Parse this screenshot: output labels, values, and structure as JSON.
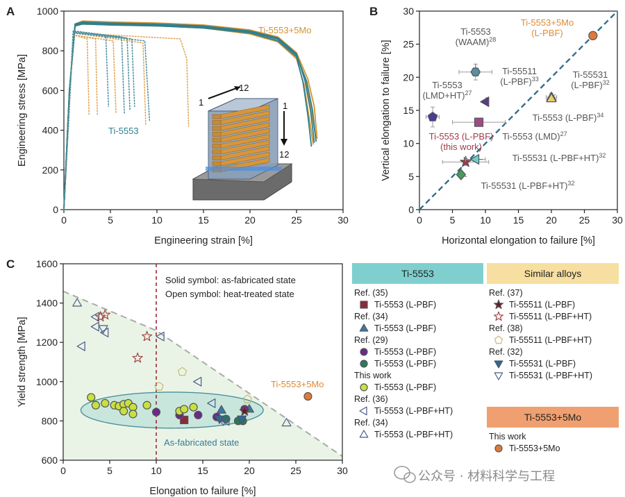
{
  "chart_data": [
    {
      "panel": "A",
      "type": "line",
      "xlabel": "Engineering strain [%]",
      "ylabel": "Engineering stress [MPa]",
      "xlim": [
        0,
        30
      ],
      "ylim": [
        0,
        1000
      ],
      "xticks": [
        0,
        5,
        10,
        15,
        20,
        25,
        30
      ],
      "yticks": [
        0,
        200,
        400,
        600,
        800,
        1000
      ],
      "annotations": [
        "Ti-5553+5Mo",
        "Ti-5553",
        "1",
        "12",
        "1",
        "12"
      ],
      "colors": {
        "ti5553_5mo": "#d4922e",
        "ti5553_5mo_dotted": "#e0a552",
        "ti5553": "#2f7f8f",
        "ti5553_dotted": "#4a8f9f"
      },
      "series": [
        {
          "group": "Ti-5553+5Mo",
          "style": "solid",
          "x": [
            0,
            0.6,
            1.2,
            2,
            5,
            10,
            15,
            20,
            23,
            25,
            26,
            26.6,
            27.1
          ],
          "y": [
            0,
            600,
            930,
            945,
            940,
            935,
            925,
            900,
            860,
            780,
            650,
            500,
            350
          ]
        },
        {
          "group": "Ti-5553+5Mo",
          "style": "solid",
          "x": [
            0,
            0.6,
            1.2,
            2,
            5,
            10,
            15,
            20,
            23,
            25,
            25.8,
            26.3,
            26.8
          ],
          "y": [
            0,
            600,
            925,
            935,
            930,
            925,
            915,
            885,
            845,
            760,
            630,
            480,
            330
          ]
        },
        {
          "group": "Ti-5553+5Mo",
          "style": "solid",
          "x": [
            0,
            0.6,
            1.2,
            2,
            5,
            10,
            15,
            20,
            23,
            25,
            26.2,
            26.9,
            27.2
          ],
          "y": [
            0,
            600,
            935,
            950,
            945,
            940,
            930,
            905,
            870,
            790,
            660,
            520,
            360
          ]
        },
        {
          "group": "Ti-5553",
          "style": "solid",
          "x": [
            0,
            0.6,
            1.2,
            2,
            5,
            10,
            15,
            20,
            23,
            25,
            25.9,
            26.5,
            26.9
          ],
          "y": [
            0,
            600,
            935,
            945,
            940,
            935,
            925,
            900,
            865,
            785,
            650,
            500,
            340
          ]
        },
        {
          "group": "Ti-5553",
          "style": "solid",
          "x": [
            0,
            0.6,
            1.2,
            2,
            5,
            10,
            15,
            20,
            23,
            25,
            25.7,
            26.2,
            26.6
          ],
          "y": [
            0,
            600,
            925,
            935,
            930,
            925,
            915,
            890,
            850,
            770,
            640,
            480,
            320
          ]
        },
        {
          "group": "Ti-5553",
          "style": "solid",
          "x": [
            0,
            0.6,
            1.2,
            2,
            5,
            10,
            15,
            20,
            23,
            25,
            26.1,
            26.7,
            27.1
          ],
          "y": [
            0,
            600,
            930,
            940,
            935,
            930,
            920,
            895,
            858,
            778,
            645,
            505,
            345
          ]
        },
        {
          "group": "Ti-5553+5Mo",
          "style": "dotted",
          "x": [
            0,
            1,
            2.5,
            2.7
          ],
          "y": [
            0,
            880,
            860,
            480
          ]
        },
        {
          "group": "Ti-5553+5Mo",
          "style": "dotted",
          "x": [
            0,
            1,
            3.4,
            3.6
          ],
          "y": [
            0,
            880,
            860,
            480
          ]
        },
        {
          "group": "Ti-5553+5Mo",
          "style": "dotted",
          "x": [
            0,
            1,
            5.3,
            5.6
          ],
          "y": [
            0,
            880,
            850,
            490
          ]
        },
        {
          "group": "Ti-5553+5Mo",
          "style": "dotted",
          "x": [
            0,
            1,
            8.5,
            8.8
          ],
          "y": [
            0,
            890,
            840,
            430
          ]
        },
        {
          "group": "Ti-5553+5Mo",
          "style": "dotted",
          "x": [
            0,
            1,
            12.5,
            13.2,
            13.4
          ],
          "y": [
            0,
            890,
            860,
            760,
            420
          ]
        },
        {
          "group": "Ti-5553",
          "style": "dotted",
          "x": [
            0,
            1,
            4.5,
            4.8
          ],
          "y": [
            0,
            900,
            880,
            520
          ]
        },
        {
          "group": "Ti-5553",
          "style": "dotted",
          "x": [
            0,
            1,
            6.2,
            6.5
          ],
          "y": [
            0,
            900,
            870,
            480
          ]
        },
        {
          "group": "Ti-5553",
          "style": "dotted",
          "x": [
            0,
            1,
            6.8,
            7.1
          ],
          "y": [
            0,
            895,
            865,
            500
          ]
        },
        {
          "group": "Ti-5553",
          "style": "dotted",
          "x": [
            0,
            1,
            7.3,
            7.6
          ],
          "y": [
            0,
            890,
            860,
            520
          ]
        },
        {
          "group": "Ti-5553",
          "style": "dotted",
          "x": [
            0,
            1,
            8.7,
            9.2
          ],
          "y": [
            0,
            890,
            850,
            450
          ]
        }
      ]
    },
    {
      "panel": "B",
      "type": "scatter",
      "xlabel": "Horizontal elongation to failure [%]",
      "ylabel": "Vertical elongation to failure [%]",
      "xlim": [
        0,
        30
      ],
      "ylim": [
        0,
        30
      ],
      "xticks": [
        0,
        5,
        10,
        15,
        20,
        25,
        30
      ],
      "yticks": [
        0,
        5,
        10,
        15,
        20,
        25,
        30
      ],
      "diagonal": true,
      "points": [
        {
          "label": "Ti-5553+5Mo (L-PBF)",
          "x": 26.3,
          "y": 26.3,
          "marker": "circle",
          "color": "#e07a3a"
        },
        {
          "label": "Ti-5553 (WAAM)",
          "sup": "28",
          "x": 8.5,
          "y": 20.8,
          "xerr": 2.5,
          "yerr": 1.2,
          "marker": "hexagon",
          "color": "#5a8fa0"
        },
        {
          "label": "Ti-55511 (L-PBF)",
          "sup": "33",
          "x": 10,
          "y": 16.3,
          "marker": "triangle-left",
          "color": "#5a3a8a"
        },
        {
          "label": "Ti-55531 (L-PBF)",
          "sup": "32",
          "x": 20,
          "y": 17,
          "xerr": 0.8,
          "yerr": 0.6,
          "marker": "triangle-up",
          "color": "#c8b84a"
        },
        {
          "label": "Ti-5553 (L-PBF)",
          "sup": "34",
          "x": 20,
          "y": 16.8,
          "marker": "triangle-up",
          "color": "#e6d070"
        },
        {
          "label": "Ti-5553 (LMD+HT)",
          "sup": "27",
          "x": 2,
          "y": 14,
          "xerr": 1,
          "yerr": 1.5,
          "marker": "pentagon",
          "color": "#4a3a9a"
        },
        {
          "label": "Ti-5553 (LMD)",
          "sup": "27",
          "x": 9,
          "y": 13.2,
          "xerr": 4,
          "marker": "square",
          "color": "#a04a8a"
        },
        {
          "label": "Ti-5553 (L-PBF) (this work)",
          "x": 7,
          "y": 7.2,
          "xerr": 3.5,
          "yerr": 0.5,
          "marker": "star",
          "color": "#a03a4a"
        },
        {
          "label": "Ti-55531 (L-PBF+HT)",
          "sup": "32",
          "x": 8.5,
          "y": 7.6,
          "xerr": 1.5,
          "marker": "triangle-left",
          "color": "#6acfcf"
        },
        {
          "label": "Ti-55531 (L-PBF+HT)",
          "sup": "32",
          "x": 6.3,
          "y": 5.3,
          "marker": "diamond",
          "color": "#4a9a5a"
        }
      ]
    },
    {
      "panel": "C",
      "type": "scatter",
      "xlabel": "Elongation to failure [%]",
      "ylabel": "Yield strength [MPa]",
      "xlim": [
        0,
        30
      ],
      "ylim": [
        600,
        1600
      ],
      "xticks": [
        0,
        5,
        10,
        15,
        20,
        25,
        30
      ],
      "yticks": [
        600,
        800,
        1000,
        1200,
        1400,
        1600
      ],
      "vline_x": 10,
      "boundary_line": {
        "x": [
          0,
          10,
          30
        ],
        "y": [
          1460,
          1260,
          620
        ]
      },
      "notes": [
        "Solid symbol: as-fabricated state",
        "Open symbol: heat-treated state"
      ],
      "region_label": "As-fabricated state",
      "highlight_label": "Ti-5553+5Mo",
      "groups": [
        {
          "name": "Ti-5553 (L-PBF)",
          "ref": "Ref. (35)",
          "marker": "square",
          "filled": true,
          "color": "#8a2a3a",
          "x": [
            13
          ],
          "y": [
            805
          ]
        },
        {
          "name": "Ti-5553 (L-PBF)",
          "ref": "Ref. (34)",
          "marker": "triangle-up",
          "filled": true,
          "color": "#3a7aaa",
          "x": [
            17,
            20
          ],
          "y": [
            855,
            860
          ]
        },
        {
          "name": "Ti-5553 (L-PBF)",
          "ref": "Ref. (29)",
          "marker": "circle",
          "filled": true,
          "color": "#6a2a8a",
          "x": [
            10,
            12.5,
            14.5,
            16.5,
            19.5
          ],
          "y": [
            845,
            830,
            830,
            820,
            860
          ]
        },
        {
          "name": "Ti-5553 (L-PBF)",
          "ref": "Ref. (29)",
          "marker": "circle",
          "filled": true,
          "color": "#2a7a5a",
          "x": [
            17.5,
            18.8,
            19.3
          ],
          "y": [
            810,
            800,
            800
          ]
        },
        {
          "name": "Ti-5553 (L-PBF)",
          "ref": "This work",
          "marker": "circle",
          "filled": true,
          "color": "#c8e040",
          "x": [
            3,
            3.5,
            4.5,
            5.5,
            6,
            6.5,
            7,
            7.5,
            6.5,
            7.5,
            9,
            12.5,
            13,
            14
          ],
          "y": [
            920,
            880,
            890,
            880,
            875,
            885,
            890,
            870,
            850,
            835,
            880,
            850,
            860,
            870
          ]
        },
        {
          "name": "Ti-5553 (L-PBF+HT)",
          "ref": "Ref. (36)",
          "marker": "triangle-left",
          "filled": false,
          "color": "#4a5a8a",
          "x": [
            2,
            3.5,
            3.5,
            4.5,
            10.5,
            14.5,
            16,
            17.5
          ],
          "y": [
            1180,
            1330,
            1280,
            1250,
            1230,
            1000,
            890,
            800
          ]
        },
        {
          "name": "Ti-5553 (L-PBF+HT)",
          "ref": "Ref. (34)",
          "marker": "triangle-up",
          "filled": false,
          "color": "#4a5a8a",
          "x": [
            1.5,
            24
          ],
          "y": [
            1400,
            790
          ]
        },
        {
          "name": "Ti-55511 (L-PBF)",
          "ref": "Ref. (37)",
          "marker": "star",
          "filled": true,
          "color": "#6a1a2a",
          "x": [
            19.5
          ],
          "y": [
            850
          ]
        },
        {
          "name": "Ti-55511 (L-PBF+HT)",
          "ref": "Ref. (37)",
          "marker": "star",
          "filled": false,
          "color": "#a04a4a",
          "x": [
            4,
            4.5,
            8,
            9
          ],
          "y": [
            1330,
            1340,
            1120,
            1230
          ]
        },
        {
          "name": "Ti-55511 (L-PBF+HT)",
          "ref": "Ref. (38)",
          "marker": "pentagon",
          "filled": false,
          "color": "#c8b870",
          "x": [
            10.3,
            12.8,
            19.8
          ],
          "y": [
            975,
            1050,
            910
          ]
        },
        {
          "name": "Ti-55531 (L-PBF)",
          "ref": "Ref. (32)",
          "marker": "triangle-down",
          "filled": true,
          "color": "#2a6a9a",
          "x": [
            16.8,
            19.2
          ],
          "y": [
            810,
            810
          ]
        },
        {
          "name": "Ti-55531 (L-PBF+HT)",
          "ref": "Ref. (32)",
          "marker": "triangle-down",
          "filled": false,
          "color": "#4a5a8a",
          "x": [
            4.3,
            17.2
          ],
          "y": [
            1270,
            800
          ]
        },
        {
          "name": "Ti-5553+5Mo",
          "ref": "This work",
          "marker": "circle",
          "filled": true,
          "color": "#e07a3a",
          "x": [
            26.3
          ],
          "y": [
            925
          ]
        }
      ]
    }
  ],
  "legend": {
    "ti5553": {
      "header": "Ti-5553",
      "header_color": "#7fcfcf",
      "items": [
        {
          "ref": "Ref. (35)",
          "label": "Ti-5553 (L-PBF)",
          "marker": "square",
          "filled": true,
          "color": "#8a2a3a"
        },
        {
          "ref": "Ref. (34)",
          "label": "Ti-5553 (L-PBF)",
          "marker": "triangle-up",
          "filled": true,
          "color": "#3a7aaa"
        },
        {
          "ref": "Ref. (29)",
          "label": "Ti-5553 (L-PBF)",
          "marker": "circle",
          "filled": true,
          "color": "#6a2a8a"
        },
        {
          "ref": "",
          "label": "Ti-5553 (L-PBF)",
          "marker": "circle",
          "filled": true,
          "color": "#2a7a5a"
        },
        {
          "ref": "This work",
          "label": "Ti-5553 (L-PBF)",
          "marker": "circle",
          "filled": true,
          "color": "#c8e040"
        },
        {
          "ref": "Ref. (36)",
          "label": "Ti-5553 (L-PBF+HT)",
          "marker": "triangle-left",
          "filled": false,
          "color": "#4a5a8a"
        },
        {
          "ref": "Ref. (34)",
          "label": "Ti-5553 (L-PBF+HT)",
          "marker": "triangle-up",
          "filled": false,
          "color": "#4a5a8a"
        }
      ]
    },
    "similar": {
      "header": "Similar alloys",
      "header_color": "#f6dfa0",
      "items": [
        {
          "ref": "Ref. (37)",
          "label": "Ti-55511 (L-PBF)",
          "marker": "star",
          "filled": true,
          "color": "#6a1a2a"
        },
        {
          "ref": "",
          "label": "Ti-55511 (L-PBF+HT)",
          "marker": "star",
          "filled": false,
          "color": "#a04a4a"
        },
        {
          "ref": "Ref. (38)",
          "label": "Ti-55511 (L-PBF+HT)",
          "marker": "pentagon",
          "filled": false,
          "color": "#c8b870"
        },
        {
          "ref": "Ref. (32)",
          "label": "Ti-55531 (L-PBF)",
          "marker": "triangle-down",
          "filled": true,
          "color": "#2a6a9a"
        },
        {
          "ref": "",
          "label": "Ti-55531 (L-PBF+HT)",
          "marker": "triangle-down",
          "filled": false,
          "color": "#4a5a8a"
        }
      ]
    },
    "mo": {
      "header": "Ti-5553+5Mo",
      "header_color": "#f0a070",
      "items": [
        {
          "ref": "This work",
          "label": "Ti-5553+5Mo",
          "marker": "circle",
          "filled": true,
          "color": "#e07a3a"
        }
      ]
    }
  },
  "panel_letters": [
    "A",
    "B",
    "C"
  ],
  "watermark": "公众号 · 材料科学与工程"
}
